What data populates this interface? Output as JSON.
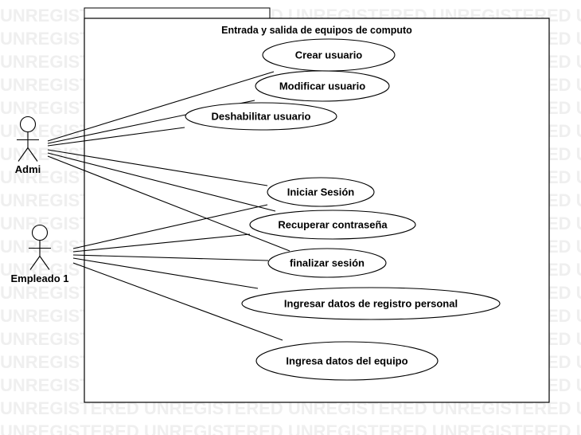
{
  "watermark": "UNREGISTERED",
  "diagram": {
    "system_title": "Entrada y salida de equipos de computo",
    "actors": [
      {
        "id": "admi",
        "label": "Admi"
      },
      {
        "id": "empleado",
        "label": "Empleado 1"
      }
    ],
    "use_cases": [
      {
        "id": "crear-usuario",
        "label": "Crear usuario"
      },
      {
        "id": "modificar-usuario",
        "label": "Modificar usuario"
      },
      {
        "id": "deshabilitar-usuario",
        "label": "Deshabilitar usuario"
      },
      {
        "id": "iniciar-sesion",
        "label": "Iniciar Sesión"
      },
      {
        "id": "recuperar-contrasena",
        "label": "Recuperar contraseña"
      },
      {
        "id": "finalizar-sesion",
        "label": "finalizar sesión"
      },
      {
        "id": "ingresar-datos-registro",
        "label": "Ingresar datos de registro personal"
      },
      {
        "id": "ingresa-datos-equipo",
        "label": "Ingresa datos del equipo"
      }
    ],
    "associations": [
      {
        "actor": "admi",
        "use_case": "crear-usuario"
      },
      {
        "actor": "admi",
        "use_case": "modificar-usuario"
      },
      {
        "actor": "admi",
        "use_case": "deshabilitar-usuario"
      },
      {
        "actor": "admi",
        "use_case": "iniciar-sesion"
      },
      {
        "actor": "admi",
        "use_case": "recuperar-contrasena"
      },
      {
        "actor": "admi",
        "use_case": "finalizar-sesion"
      },
      {
        "actor": "empleado",
        "use_case": "iniciar-sesion"
      },
      {
        "actor": "empleado",
        "use_case": "recuperar-contrasena"
      },
      {
        "actor": "empleado",
        "use_case": "finalizar-sesion"
      },
      {
        "actor": "empleado",
        "use_case": "ingresar-datos-registro"
      },
      {
        "actor": "empleado",
        "use_case": "ingresa-datos-equipo"
      }
    ]
  }
}
